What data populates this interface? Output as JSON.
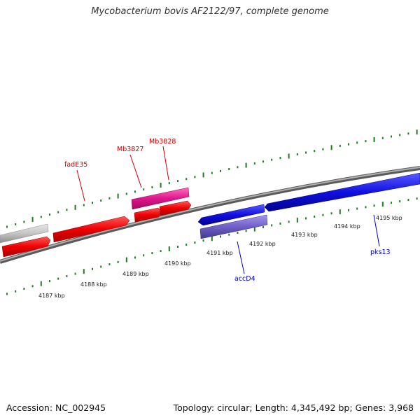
{
  "title": "Mycobacterium bovis AF2122/97, complete genome",
  "footer": {
    "accession": "Accession: NC_002945",
    "summary": "Topology: circular; Length: 4,345,492 bp; Genes: 3,968"
  },
  "colors": {
    "tick": "#1e7d1e",
    "backbone": "#808080",
    "red_gene": "#ee0000",
    "pink_gene": "#e0168c",
    "grey_gene": "#c4c4c4",
    "blue_gene": "#1010e0",
    "purple_gene": "#6f5fc6",
    "red_label": "#cc0000",
    "blue_label": "#0000bb"
  },
  "kbp_labels": [
    "4187 kbp",
    "4188 kbp",
    "4189 kbp",
    "4190 kbp",
    "4191 kbp",
    "4192 kbp",
    "4193 kbp",
    "4194 kbp",
    "4195 kbp"
  ],
  "gene_labels": {
    "fadE35": "fadE35",
    "Mb3827": "Mb3827",
    "Mb3828": "Mb3828",
    "accD4": "accD4",
    "pks13": "pks13"
  }
}
